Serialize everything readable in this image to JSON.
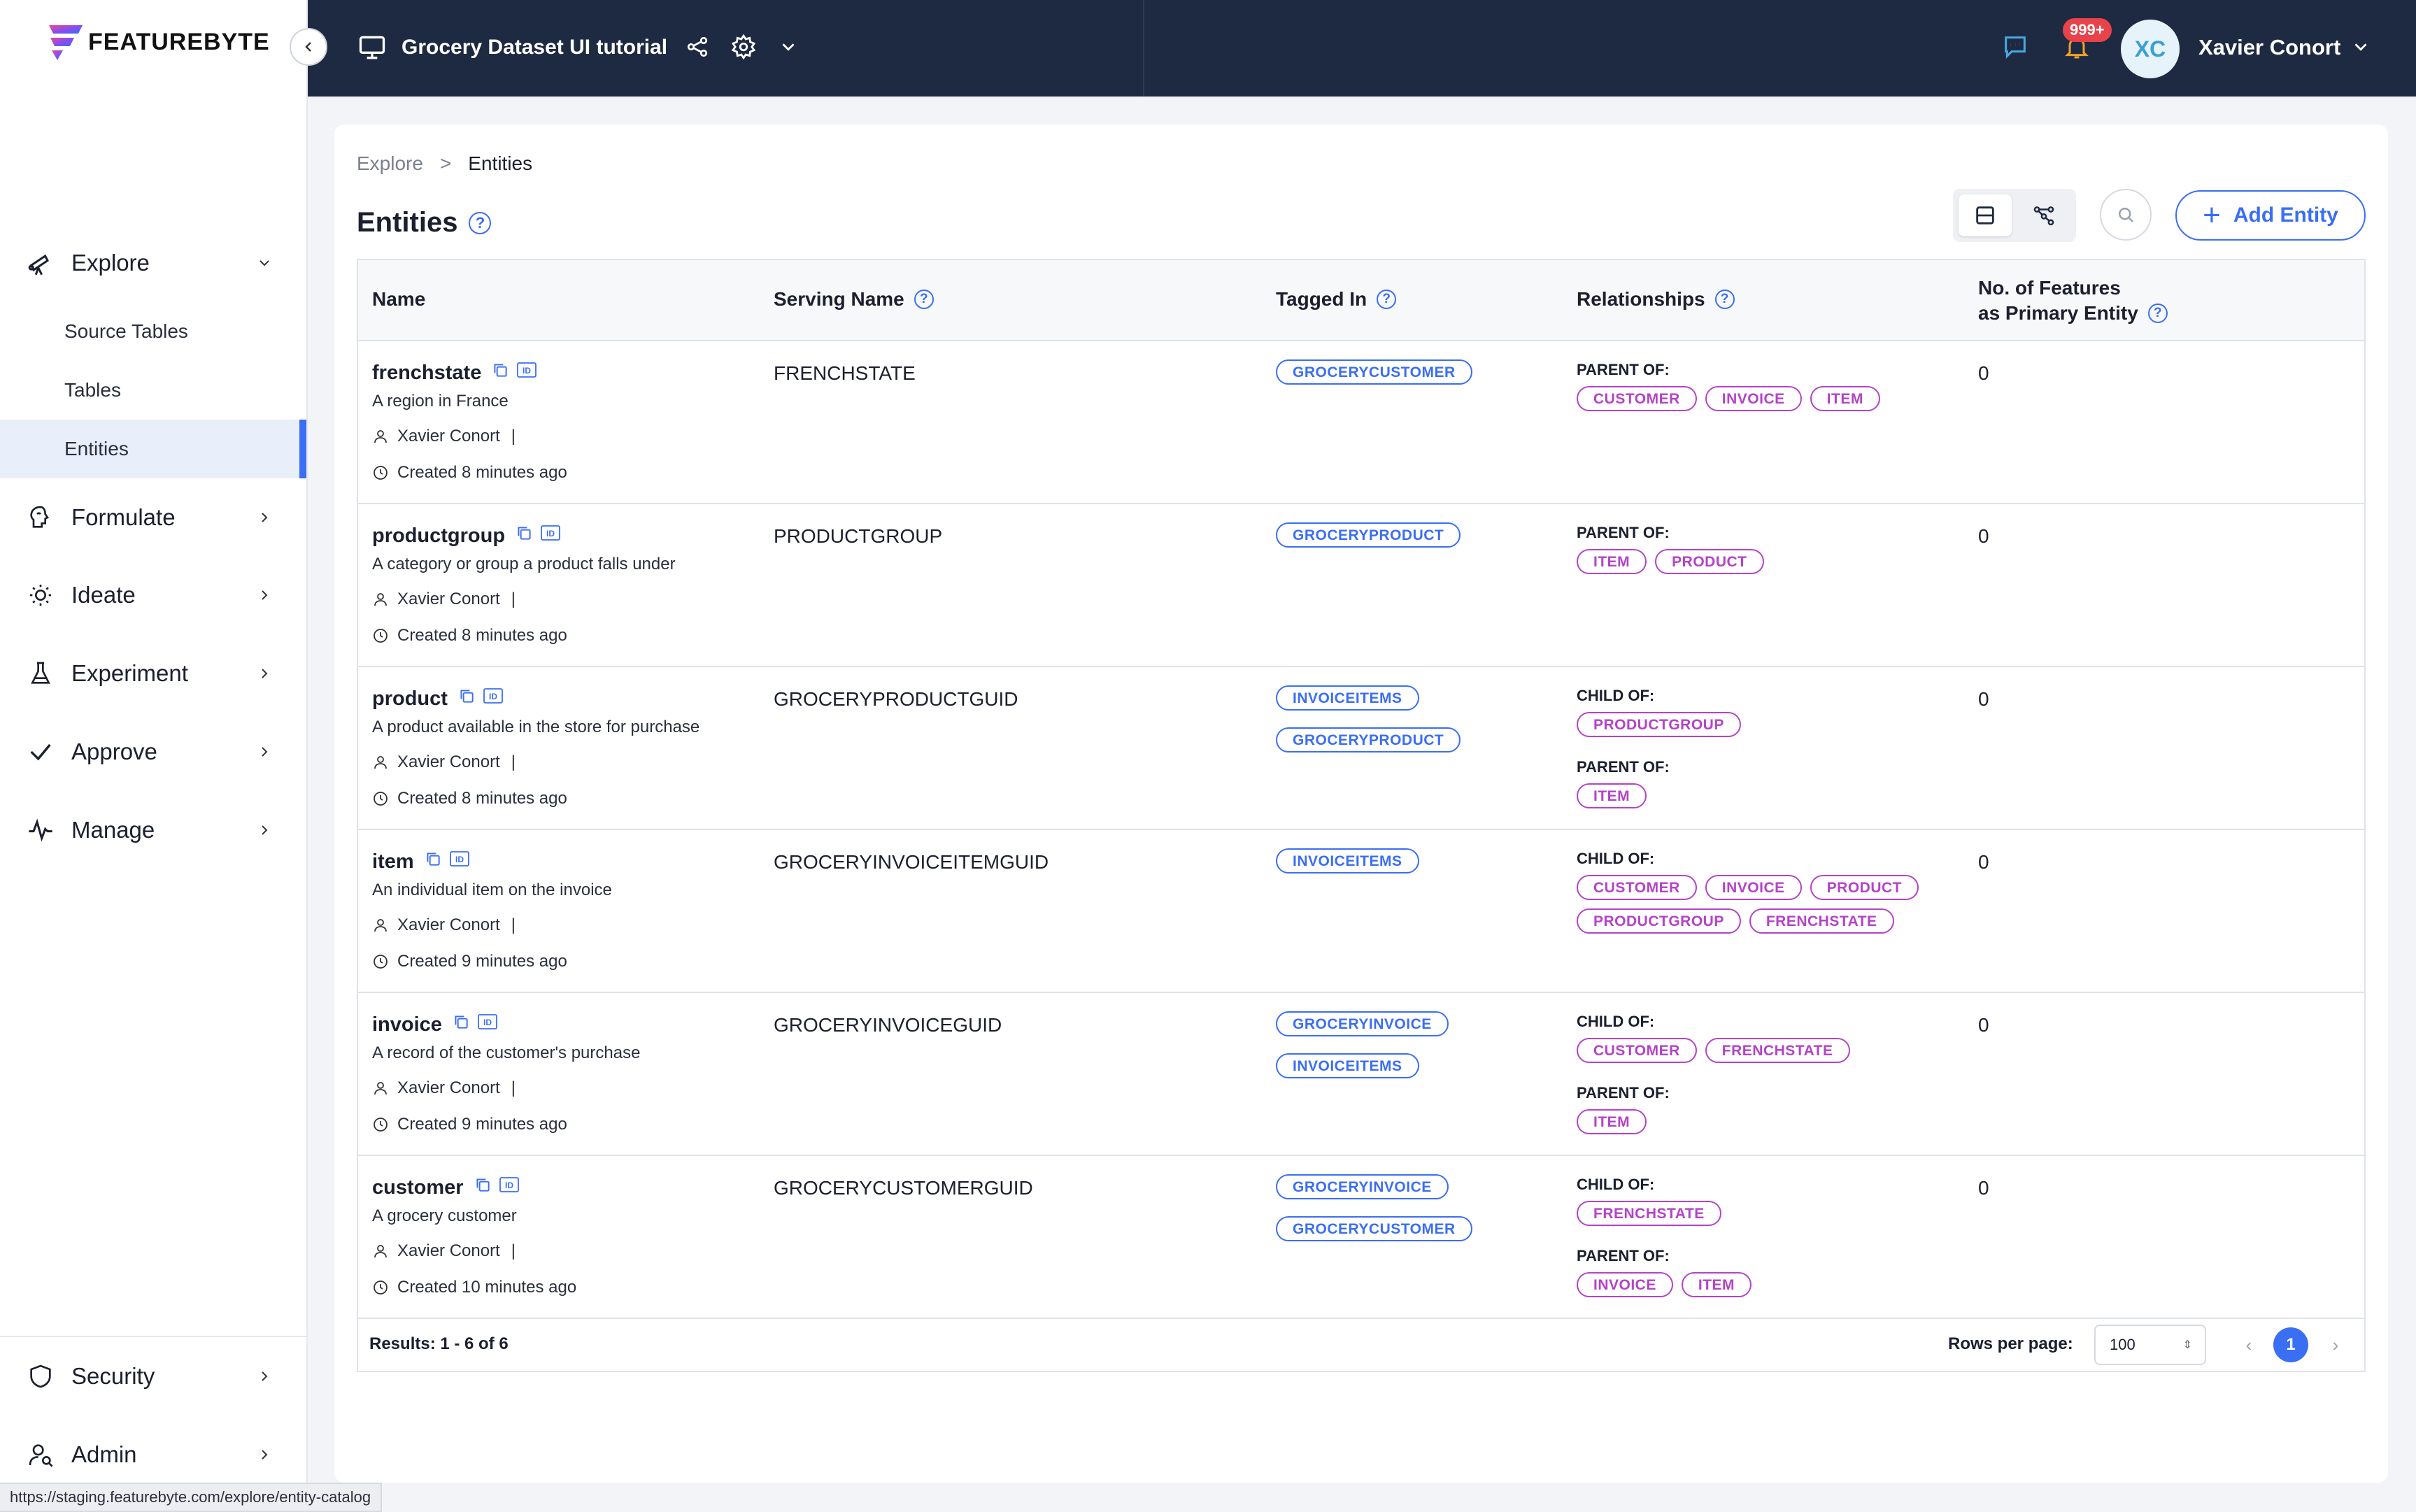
{
  "app": {
    "logo_text": "FEATUREBYTE"
  },
  "sidebar": {
    "explore_label": "Explore",
    "explore_children": [
      "Source Tables",
      "Tables",
      "Entities"
    ],
    "items": [
      {
        "label": "Formulate",
        "icon": "brain-icon"
      },
      {
        "label": "Ideate",
        "icon": "lightbulb-icon"
      },
      {
        "label": "Experiment",
        "icon": "flask-icon"
      },
      {
        "label": "Approve",
        "icon": "check-icon"
      },
      {
        "label": "Manage",
        "icon": "pulse-icon"
      }
    ],
    "bottom": [
      {
        "label": "Security",
        "icon": "shield-icon"
      },
      {
        "label": "Admin",
        "icon": "user-search-icon"
      }
    ]
  },
  "header": {
    "project_title": "Grocery Dataset UI tutorial",
    "notification_badge": "999+",
    "avatar_initials": "XC",
    "user_name": "Xavier Conort"
  },
  "breadcrumb": {
    "parent": "Explore",
    "separator": ">",
    "current": "Entities"
  },
  "page": {
    "title": "Entities",
    "add_button": "Add Entity"
  },
  "table": {
    "columns": [
      "Name",
      "Serving Name",
      "Tagged In",
      "Relationships",
      "No. of Features",
      "as Primary Entity"
    ],
    "rows": [
      {
        "name": "frenchstate",
        "description": "A region in France",
        "owner": "Xavier Conort",
        "owner_sep": "|",
        "created": "Created 8 minutes ago",
        "serving_name": "FRENCHSTATE",
        "tagged_in": [
          "GROCERYCUSTOMER"
        ],
        "relationships": [
          {
            "label": "PARENT OF:",
            "entities": [
              "CUSTOMER",
              "INVOICE",
              "ITEM"
            ]
          }
        ],
        "num_features": "0"
      },
      {
        "name": "productgroup",
        "description": "A category or group a product falls under",
        "owner": "Xavier Conort",
        "owner_sep": "|",
        "created": "Created 8 minutes ago",
        "serving_name": "PRODUCTGROUP",
        "tagged_in": [
          "GROCERYPRODUCT"
        ],
        "relationships": [
          {
            "label": "PARENT OF:",
            "entities": [
              "ITEM",
              "PRODUCT"
            ]
          }
        ],
        "num_features": "0"
      },
      {
        "name": "product",
        "description": "A product available in the store for purchase",
        "owner": "Xavier Conort",
        "owner_sep": "|",
        "created": "Created 8 minutes ago",
        "serving_name": "GROCERYPRODUCTGUID",
        "tagged_in": [
          "INVOICEITEMS",
          "GROCERYPRODUCT"
        ],
        "relationships": [
          {
            "label": "CHILD OF:",
            "entities": [
              "PRODUCTGROUP"
            ]
          },
          {
            "label": "PARENT OF:",
            "entities": [
              "ITEM"
            ]
          }
        ],
        "num_features": "0"
      },
      {
        "name": "item",
        "description": "An individual item on the invoice",
        "owner": "Xavier Conort",
        "owner_sep": "|",
        "created": "Created 9 minutes ago",
        "serving_name": "GROCERYINVOICEITEMGUID",
        "tagged_in": [
          "INVOICEITEMS"
        ],
        "relationships": [
          {
            "label": "CHILD OF:",
            "entities": [
              "CUSTOMER",
              "INVOICE",
              "PRODUCT",
              "PRODUCTGROUP",
              "FRENCHSTATE"
            ]
          }
        ],
        "num_features": "0"
      },
      {
        "name": "invoice",
        "description": "A record of the customer's purchase",
        "owner": "Xavier Conort",
        "owner_sep": "|",
        "created": "Created 9 minutes ago",
        "serving_name": "GROCERYINVOICEGUID",
        "tagged_in": [
          "GROCERYINVOICE",
          "INVOICEITEMS"
        ],
        "relationships": [
          {
            "label": "CHILD OF:",
            "entities": [
              "CUSTOMER",
              "FRENCHSTATE"
            ]
          },
          {
            "label": "PARENT OF:",
            "entities": [
              "ITEM"
            ]
          }
        ],
        "num_features": "0"
      },
      {
        "name": "customer",
        "description": "A grocery customer",
        "owner": "Xavier Conort",
        "owner_sep": "|",
        "created": "Created 10 minutes ago",
        "serving_name": "GROCERYCUSTOMERGUID",
        "tagged_in": [
          "GROCERYINVOICE",
          "GROCERYCUSTOMER"
        ],
        "relationships": [
          {
            "label": "CHILD OF:",
            "entities": [
              "FRENCHSTATE"
            ]
          },
          {
            "label": "PARENT OF:",
            "entities": [
              "INVOICE",
              "ITEM"
            ]
          }
        ],
        "num_features": "0"
      }
    ]
  },
  "footer": {
    "results": "Results: 1 - 6 of 6",
    "rows_per_page_label": "Rows per page:",
    "rows_per_page_value": "100",
    "current_page": "1"
  },
  "status_url": "https://staging.featurebyte.com/explore/entity-catalog",
  "colors": {
    "accent": "#3a6ef3",
    "relationship": "#b542c9",
    "header_bg": "#1e2a42"
  }
}
